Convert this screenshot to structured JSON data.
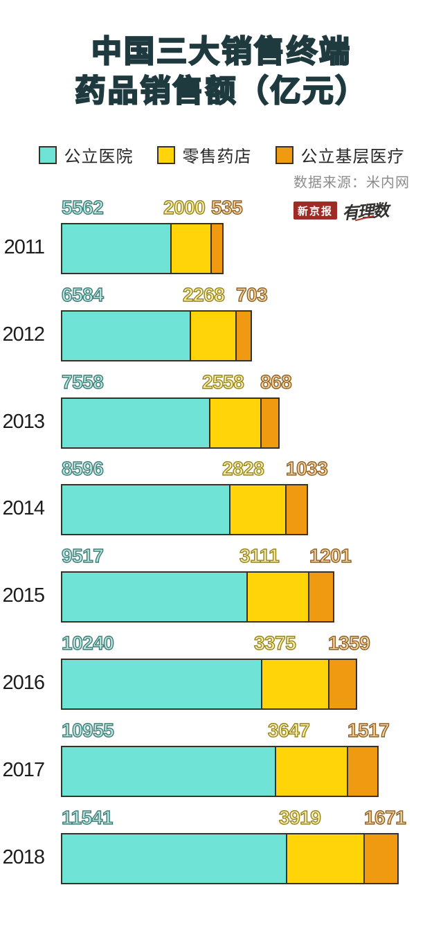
{
  "title": {
    "line1": "中国三大销售终端",
    "line2": "药品销售额（亿元）"
  },
  "legend": [
    {
      "label": "公立医院",
      "color": "#6FE3D6"
    },
    {
      "label": "零售药店",
      "color": "#FFD408"
    },
    {
      "label": "公立基层医疗",
      "color": "#F09A12"
    }
  ],
  "source": "数据来源：米内网",
  "logo": {
    "badge": "新京报",
    "script": "有理数"
  },
  "colors": {
    "title_fill": "#7EE4D7",
    "title_stroke": "#1E3A3F",
    "bar_border": "#3A3126",
    "badge_red": "#9E2B25"
  },
  "chart_data": {
    "type": "bar",
    "orientation": "horizontal",
    "stacked": true,
    "title": "中国三大销售终端药品销售额（亿元）",
    "unit": "亿元",
    "legend_position": "top",
    "grid": false,
    "categories": [
      "2011",
      "2012",
      "2013",
      "2014",
      "2015",
      "2016",
      "2017",
      "2018"
    ],
    "series": [
      {
        "name": "公立医院",
        "color": "#6FE3D6",
        "values": [
          5562,
          6584,
          7558,
          8596,
          9517,
          10240,
          10955,
          11541
        ]
      },
      {
        "name": "零售药店",
        "color": "#FFD408",
        "values": [
          2000,
          2268,
          2558,
          2828,
          3111,
          3375,
          3647,
          3919
        ]
      },
      {
        "name": "公立基层医疗",
        "color": "#F09A12",
        "values": [
          535,
          703,
          868,
          1033,
          1201,
          1359,
          1517,
          1671
        ]
      }
    ]
  }
}
